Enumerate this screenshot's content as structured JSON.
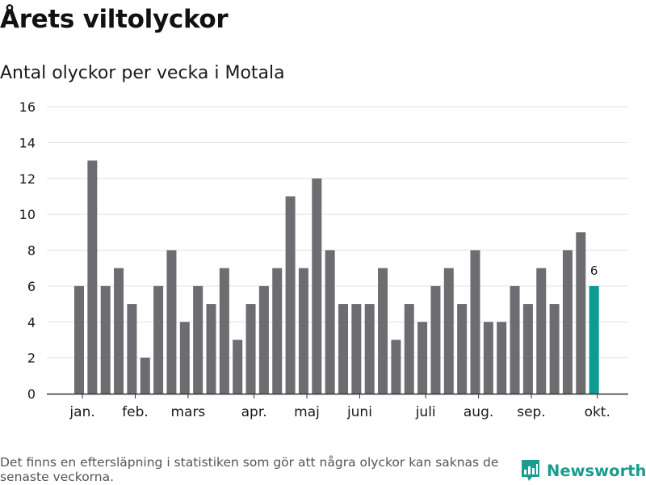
{
  "title": "Årets viltolyckor",
  "subtitle": "Antal olyckor per vecka i Motala",
  "footnote": "Det finns en eftersläpning i statistiken som gör att några olyckor kan saknas de senaste veckorna.",
  "brand": {
    "name": "Newsworthy",
    "icon": "newsworthy-logo-icon"
  },
  "colors": {
    "bar": "#6d6c70",
    "highlight": "#0a9b92",
    "grid": "#e2e2e2",
    "axis": "#333333",
    "text": "#1a1a1a"
  },
  "chart_data": {
    "type": "bar",
    "title": "Antal olyckor per vecka i Motala",
    "xlabel": "",
    "ylabel": "",
    "ylim": [
      0,
      16
    ],
    "yticks": [
      0,
      2,
      4,
      6,
      8,
      10,
      12,
      14,
      16
    ],
    "values": [
      6,
      13,
      6,
      7,
      5,
      2,
      6,
      8,
      4,
      6,
      5,
      7,
      3,
      5,
      6,
      7,
      11,
      7,
      12,
      8,
      5,
      5,
      5,
      7,
      3,
      5,
      4,
      6,
      7,
      5,
      8,
      4,
      4,
      6,
      5,
      7,
      5,
      8,
      9,
      6
    ],
    "highlight_index": 39,
    "highlight_label": "6",
    "month_labels": [
      {
        "label": "jan.",
        "index": 0.25
      },
      {
        "label": "feb.",
        "index": 4.25
      },
      {
        "label": "mars",
        "index": 8.25
      },
      {
        "label": "apr.",
        "index": 13.25
      },
      {
        "label": "maj",
        "index": 17.25
      },
      {
        "label": "juni",
        "index": 21.25
      },
      {
        "label": "juli",
        "index": 26.25
      },
      {
        "label": "aug.",
        "index": 30.25
      },
      {
        "label": "sep.",
        "index": 34.25
      },
      {
        "label": "okt.",
        "index": 39.25
      }
    ]
  }
}
